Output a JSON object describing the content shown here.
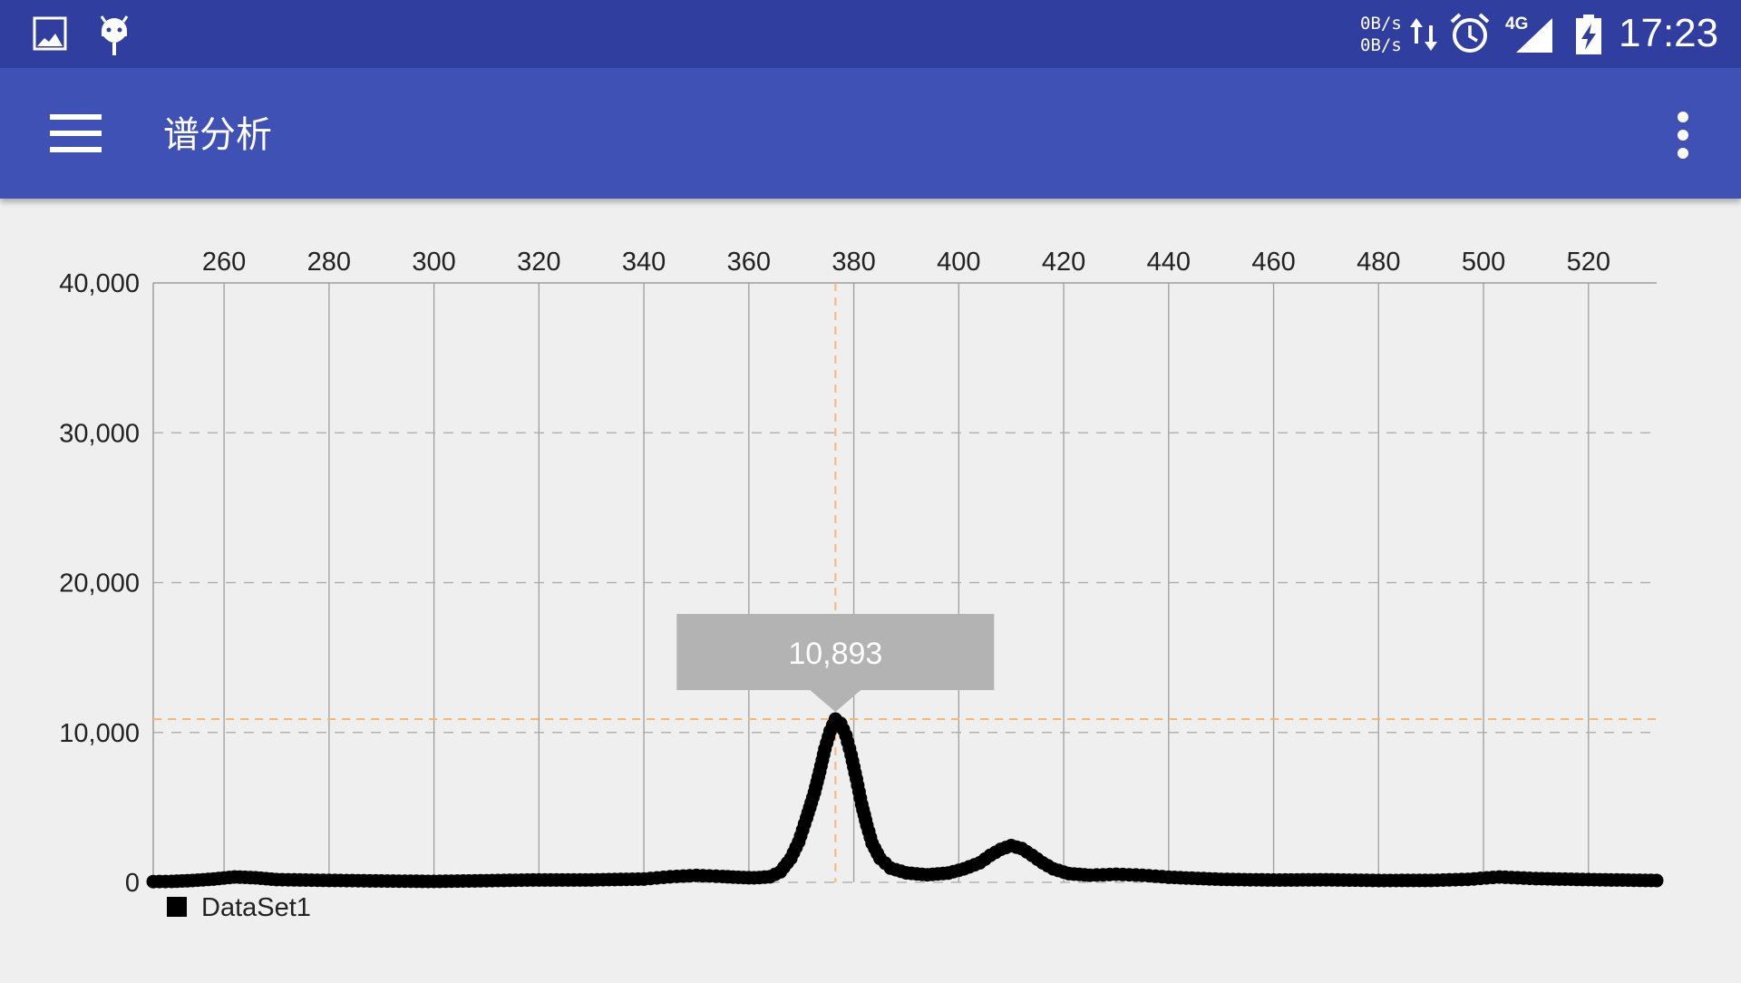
{
  "status_bar": {
    "upload_speed": "0B/s",
    "download_speed": "0B/s",
    "network_type": "4G",
    "time": "17:23",
    "icons": [
      "image-icon",
      "android-debug-icon",
      "data-transfer-icon",
      "alarm-icon",
      "signal-icon",
      "battery-charging-icon"
    ]
  },
  "app_bar": {
    "title": "谱分析",
    "icons": [
      "menu-icon",
      "more-vert-icon"
    ]
  },
  "chart_data": {
    "type": "scatter",
    "title": "",
    "xlabel": "",
    "ylabel": "",
    "x_axis_position": "top",
    "xlim": [
      246.5,
      533
    ],
    "ylim": [
      0,
      40000
    ],
    "x_ticks": [
      260,
      280,
      300,
      320,
      340,
      360,
      380,
      400,
      420,
      440,
      460,
      480,
      500,
      520
    ],
    "y_ticks": [
      0,
      10000,
      20000,
      30000,
      40000
    ],
    "y_tick_labels": [
      "0",
      "10,000",
      "20,000",
      "30,000",
      "40,000"
    ],
    "vertical_grid": true,
    "horizontal_grid": "dashed",
    "legend": {
      "placement": "bottom-left",
      "entries": [
        "DataSet1"
      ]
    },
    "series": [
      {
        "name": "DataSet1",
        "color": "#000000",
        "points": [
          [
            246.5,
            50
          ],
          [
            250,
            60
          ],
          [
            254,
            120
          ],
          [
            258,
            220
          ],
          [
            262,
            360
          ],
          [
            266,
            300
          ],
          [
            270,
            180
          ],
          [
            280,
            130
          ],
          [
            290,
            90
          ],
          [
            300,
            60
          ],
          [
            310,
            110
          ],
          [
            320,
            160
          ],
          [
            330,
            160
          ],
          [
            340,
            220
          ],
          [
            345,
            370
          ],
          [
            350,
            460
          ],
          [
            355,
            390
          ],
          [
            358,
            330
          ],
          [
            361,
            300
          ],
          [
            364,
            370
          ],
          [
            366,
            700
          ],
          [
            368,
            1600
          ],
          [
            369.5,
            2700
          ],
          [
            371,
            4300
          ],
          [
            372.5,
            6000
          ],
          [
            373.5,
            7400
          ],
          [
            374.5,
            8900
          ],
          [
            375.5,
            10100
          ],
          [
            376.5,
            10893
          ],
          [
            377.5,
            10600
          ],
          [
            378.5,
            9800
          ],
          [
            379.5,
            8500
          ],
          [
            380.5,
            6900
          ],
          [
            381.5,
            5200
          ],
          [
            382.5,
            3800
          ],
          [
            383.5,
            2600
          ],
          [
            385,
            1600
          ],
          [
            387,
            950
          ],
          [
            390,
            630
          ],
          [
            394,
            500
          ],
          [
            398,
            620
          ],
          [
            401,
            900
          ],
          [
            404,
            1300
          ],
          [
            406,
            1800
          ],
          [
            408,
            2200
          ],
          [
            410,
            2450
          ],
          [
            412,
            2250
          ],
          [
            414,
            1800
          ],
          [
            416,
            1300
          ],
          [
            418,
            900
          ],
          [
            421,
            580
          ],
          [
            425,
            470
          ],
          [
            430,
            540
          ],
          [
            435,
            470
          ],
          [
            440,
            340
          ],
          [
            450,
            200
          ],
          [
            460,
            150
          ],
          [
            470,
            170
          ],
          [
            480,
            120
          ],
          [
            490,
            130
          ],
          [
            497,
            200
          ],
          [
            503,
            360
          ],
          [
            510,
            250
          ],
          [
            520,
            180
          ],
          [
            533,
            120
          ]
        ]
      }
    ],
    "highlight": {
      "x": 376.5,
      "y": 10893,
      "label": "10,893"
    }
  },
  "colors": {
    "status_bar": "#303f9f",
    "app_bar": "#3f51b5",
    "background": "#efefef",
    "highlight_line": "#f5b77b",
    "marker_box": "#b3b3b3"
  }
}
